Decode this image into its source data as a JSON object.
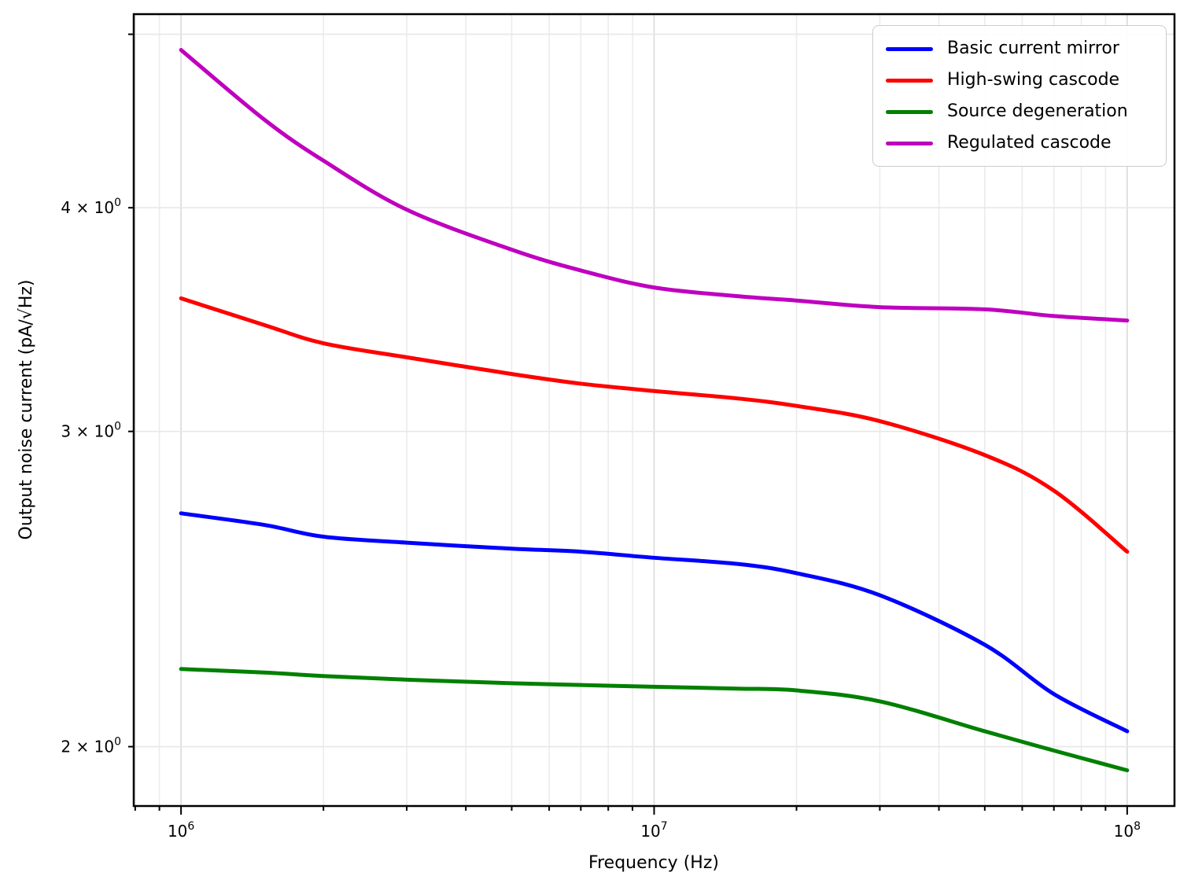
{
  "chart_data": {
    "type": "line",
    "title": "",
    "xlabel": "Frequency (Hz)",
    "ylabel": "Output noise current (pA/√Hz)",
    "x_scale": "log",
    "y_scale": "log",
    "xlim": [
      794328,
      125892541
    ],
    "ylim": [
      1.853,
      5.131
    ],
    "grid": true,
    "legend_position": "upper right",
    "x": [
      1000000,
      1500000,
      2000000,
      3000000,
      5000000,
      7000000,
      10000000,
      15000000,
      20000000,
      30000000,
      50000000,
      70000000,
      100000000
    ],
    "series": [
      {
        "name": "Basic current mirror",
        "color": "#0000ff",
        "values": [
          2.7,
          2.66,
          2.62,
          2.6,
          2.58,
          2.57,
          2.55,
          2.53,
          2.5,
          2.43,
          2.28,
          2.14,
          2.04
        ]
      },
      {
        "name": "High-swing cascode",
        "color": "#ff0000",
        "values": [
          3.56,
          3.44,
          3.36,
          3.3,
          3.23,
          3.19,
          3.16,
          3.13,
          3.1,
          3.04,
          2.91,
          2.78,
          2.57
        ]
      },
      {
        "name": "Source degeneration",
        "color": "#008000",
        "values": [
          2.21,
          2.2,
          2.19,
          2.18,
          2.17,
          2.165,
          2.16,
          2.155,
          2.15,
          2.12,
          2.04,
          1.99,
          1.94
        ]
      },
      {
        "name": "Regulated cascode",
        "color": "#bf00bf",
        "values": [
          4.9,
          4.48,
          4.25,
          3.99,
          3.79,
          3.69,
          3.61,
          3.57,
          3.55,
          3.52,
          3.51,
          3.48,
          3.46
        ]
      }
    ],
    "x_ticks": [
      {
        "value": 1000000,
        "prefix": "10",
        "sup": "6"
      },
      {
        "value": 10000000,
        "prefix": "10",
        "sup": "7"
      },
      {
        "value": 100000000,
        "prefix": "10",
        "sup": "8"
      }
    ],
    "y_ticks": [
      {
        "value": 2,
        "prefix": "2 × 10",
        "sup": "0"
      },
      {
        "value": 3,
        "prefix": "3 × 10",
        "sup": "0"
      },
      {
        "value": 4,
        "prefix": "4 × 10",
        "sup": "0"
      }
    ]
  }
}
